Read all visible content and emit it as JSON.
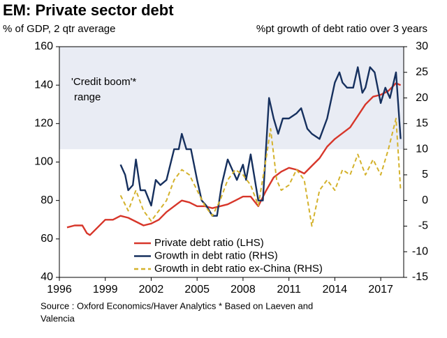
{
  "chart_data": {
    "type": "line",
    "title": "EM: Private sector debt",
    "y_label": "% of GDP, 2 qtr average",
    "y2_label": "%pt growth of debt ratio over 3 years",
    "notes": [
      "Source : Oxford Economics/Haver Analytics   * Based on Laeven and",
      "Valencia"
    ],
    "xlim": [
      1996,
      2018.5
    ],
    "xticks": [
      1996,
      1999,
      2002,
      2005,
      2008,
      2011,
      2014,
      2017
    ],
    "ylim": [
      40,
      160
    ],
    "yticks": [
      40,
      60,
      80,
      100,
      120,
      140,
      160
    ],
    "y2lim": [
      -15,
      30
    ],
    "y2ticks": [
      -15,
      -10,
      -5,
      0,
      5,
      10,
      15,
      20,
      25,
      30
    ],
    "band": {
      "label": [
        "'Credit boom'*",
        "range"
      ],
      "y2range": [
        10,
        30
      ],
      "color": "#e9ecf4"
    },
    "series": [
      {
        "name": "Private debt ratio (LHS)",
        "color": "#d7362a",
        "dash": false,
        "x": [
          1996.5,
          1997,
          1997.5,
          1997.8,
          1998,
          1998.5,
          1999,
          1999.5,
          2000,
          2000.5,
          2001,
          2001.5,
          2002,
          2002.5,
          2003,
          2003.5,
          2004,
          2004.5,
          2005,
          2005.5,
          2006,
          2006.5,
          2007,
          2007.5,
          2008,
          2008.5,
          2009,
          2009.5,
          2010,
          2010.5,
          2011,
          2011.5,
          2012,
          2012.5,
          2013,
          2013.5,
          2014,
          2014.5,
          2015,
          2015.5,
          2016,
          2016.5,
          2017,
          2017.5,
          2018,
          2018.3
        ],
        "values": [
          66,
          67,
          67,
          63,
          62,
          66,
          70,
          70,
          72,
          71,
          69,
          67,
          68,
          70,
          74,
          77,
          80,
          79,
          77,
          77,
          76,
          77,
          78,
          80,
          82,
          82,
          77,
          85,
          92,
          95,
          97,
          96,
          94,
          98,
          102,
          108,
          112,
          115,
          118,
          124,
          130,
          134,
          135,
          137,
          141,
          140
        ]
      },
      {
        "name": "Growth in debt ratio (RHS)",
        "color": "#16305e",
        "dash": false,
        "axis": "y2",
        "x": [
          2000,
          2000.3,
          2000.5,
          2000.8,
          2001,
          2001.3,
          2001.6,
          2002,
          2002.3,
          2002.6,
          2003,
          2003.5,
          2003.8,
          2004,
          2004.3,
          2004.6,
          2005,
          2005.3,
          2005.6,
          2006,
          2006.3,
          2006.6,
          2007,
          2007.3,
          2007.6,
          2008,
          2008.2,
          2008.5,
          2009,
          2009.3,
          2009.7,
          2010,
          2010.3,
          2010.6,
          2011,
          2011.5,
          2011.8,
          2012,
          2012.2,
          2012.5,
          2013,
          2013.5,
          2014,
          2014.3,
          2014.5,
          2014.8,
          2015.2,
          2015.5,
          2015.8,
          2016,
          2016.3,
          2016.6,
          2017,
          2017.3,
          2017.6,
          2018,
          2018.3
        ],
        "values": [
          7,
          5,
          2,
          3,
          8,
          2,
          2,
          -1,
          4,
          3,
          4,
          10,
          10,
          13,
          10,
          10,
          4,
          0,
          -1,
          -3,
          -3,
          3,
          8,
          6,
          4,
          7,
          4,
          9,
          0,
          0,
          20,
          16,
          13,
          16,
          16,
          17,
          18,
          16,
          14,
          13,
          12,
          16,
          23,
          25,
          23,
          22,
          22,
          26,
          21,
          22,
          26,
          25,
          19,
          22,
          20,
          25,
          12
        ]
      },
      {
        "name": "Growth in debt ratio ex-China (RHS)",
        "color": "#d4b22c",
        "dash": true,
        "axis": "y2",
        "x": [
          2000,
          2000.5,
          2001,
          2001.5,
          2002,
          2002.5,
          2003,
          2003.5,
          2004,
          2004.5,
          2005,
          2005.5,
          2006,
          2006.5,
          2007,
          2007.5,
          2008,
          2008.5,
          2009,
          2009.5,
          2009.8,
          2010.2,
          2010.5,
          2011,
          2011.5,
          2012,
          2012.5,
          2013,
          2013.5,
          2014,
          2014.5,
          2015,
          2015.5,
          2016,
          2016.5,
          2017,
          2017.5,
          2018,
          2018.3
        ],
        "values": [
          1,
          -2,
          2,
          -2,
          -4,
          -2,
          0,
          4,
          6,
          5,
          2,
          -1,
          -3,
          0,
          4,
          6,
          5,
          3,
          -1,
          8,
          14,
          4,
          2,
          3,
          6,
          4,
          -5,
          2,
          4,
          2,
          6,
          5,
          9,
          5,
          8,
          5,
          10,
          16,
          2
        ]
      }
    ]
  }
}
